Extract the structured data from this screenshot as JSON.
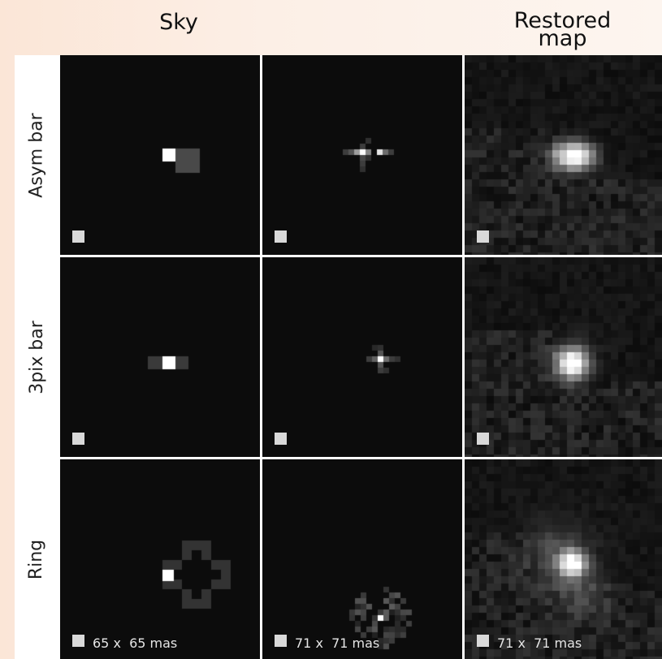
{
  "column_titles": {
    "sky": "Sky",
    "restored_line1": "Restored",
    "restored_line2": "map"
  },
  "row_labels": [
    "Asym bar",
    "3pix bar",
    "Ring"
  ],
  "scale_labels": [
    "65 x  65 mas",
    "71 x  71 mas",
    "71 x  71 mas"
  ],
  "colors": {
    "panel_background": "#0c0c0c",
    "scale_box": "#d9d9d9",
    "grid_line": "#ffffff"
  }
}
